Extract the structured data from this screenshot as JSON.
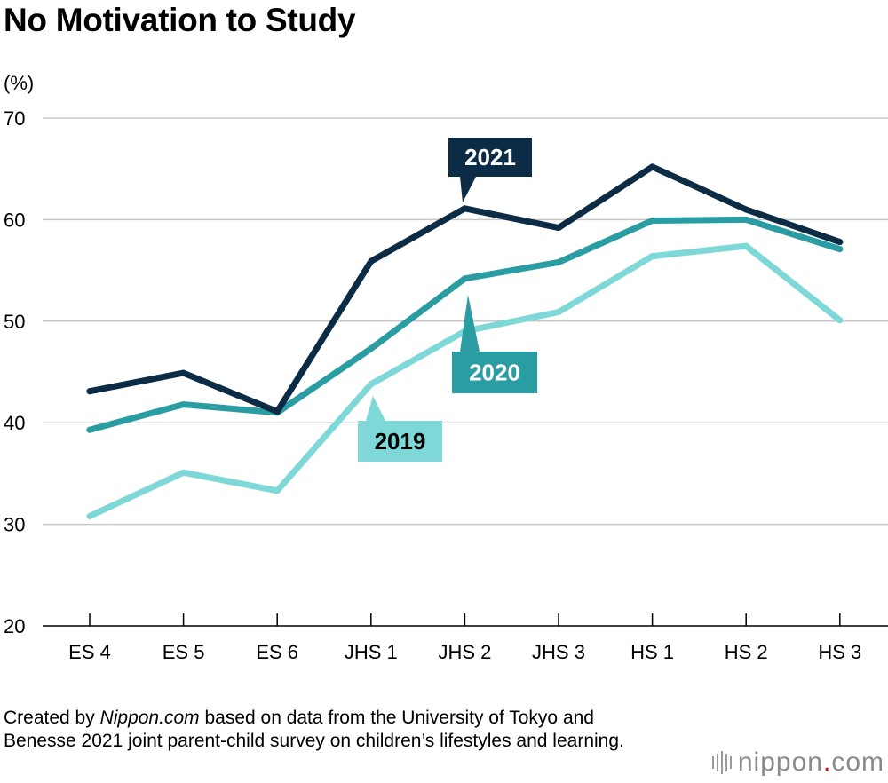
{
  "chart_data": {
    "type": "line",
    "title": "No Motivation to Study",
    "ylabel": "(%)",
    "xlabel": "",
    "ylim": [
      20,
      70
    ],
    "yticks": [
      20,
      30,
      40,
      50,
      60,
      70
    ],
    "grid": true,
    "categories": [
      "ES 4",
      "ES 5",
      "ES 6",
      "JHS 1",
      "JHS 2",
      "JHS 3",
      "HS 1",
      "HS 2",
      "HS 3"
    ],
    "series": [
      {
        "name": "2019",
        "color": "#7fd8d8",
        "label_color": "#7fd8d8",
        "label_text_color": "#000000",
        "values": [
          30.8,
          35.1,
          33.3,
          43.8,
          49.0,
          50.9,
          56.4,
          57.4,
          50.1
        ]
      },
      {
        "name": "2020",
        "color": "#2a9da3",
        "label_color": "#2a9da3",
        "label_text_color": "#ffffff",
        "values": [
          39.3,
          41.8,
          41.0,
          47.3,
          54.2,
          55.8,
          59.9,
          60.0,
          57.1
        ]
      },
      {
        "name": "2021",
        "color": "#0c2b45",
        "label_color": "#0c2b45",
        "label_text_color": "#ffffff",
        "values": [
          43.1,
          44.9,
          41.1,
          55.9,
          61.1,
          59.2,
          65.2,
          61.0,
          57.8
        ]
      }
    ]
  },
  "footer": {
    "source_prefix": "Created by ",
    "source_brand": "Nippon.com",
    "source_suffix": " based on data from the University of Tokyo and Benesse 2021 joint parent-child survey on children’s lifestyles and learning.",
    "logo_main": "nippon",
    "logo_dot": ".",
    "logo_tld": "com"
  }
}
